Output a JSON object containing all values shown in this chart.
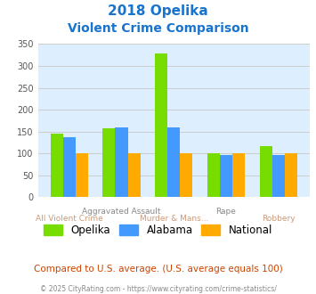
{
  "title_line1": "2018 Opelika",
  "title_line2": "Violent Crime Comparison",
  "title_color": "#1874CD",
  "categories": [
    "All Violent Crime",
    "Aggravated Assault",
    "Murder & Mans...",
    "Rape",
    "Robbery"
  ],
  "series": {
    "Opelika": [
      145,
      157,
      328,
      100,
      117
    ],
    "Alabama": [
      136,
      159,
      159,
      97,
      97
    ],
    "National": [
      100,
      100,
      100,
      100,
      100
    ]
  },
  "colors": {
    "Opelika": "#77dd00",
    "Alabama": "#4499ff",
    "National": "#ffaa00"
  },
  "ylim": [
    0,
    350
  ],
  "yticks": [
    0,
    50,
    100,
    150,
    200,
    250,
    300,
    350
  ],
  "grid_color": "#cccccc",
  "bg_color": "#ddeeff",
  "footnote": "Compared to U.S. average. (U.S. average equals 100)",
  "footnote_color": "#cc4400",
  "copyright": "© 2025 CityRating.com - https://www.cityrating.com/crime-statistics/",
  "copyright_color": "#888888",
  "legend_labels": [
    "Opelika",
    "Alabama",
    "National"
  ],
  "xlabel_row1": [
    [
      1,
      "Aggravated Assault"
    ],
    [
      3,
      "Rape"
    ]
  ],
  "xlabel_row2": [
    [
      0,
      "All Violent Crime"
    ],
    [
      2,
      "Murder & Mans..."
    ],
    [
      4,
      "Robbery"
    ]
  ]
}
